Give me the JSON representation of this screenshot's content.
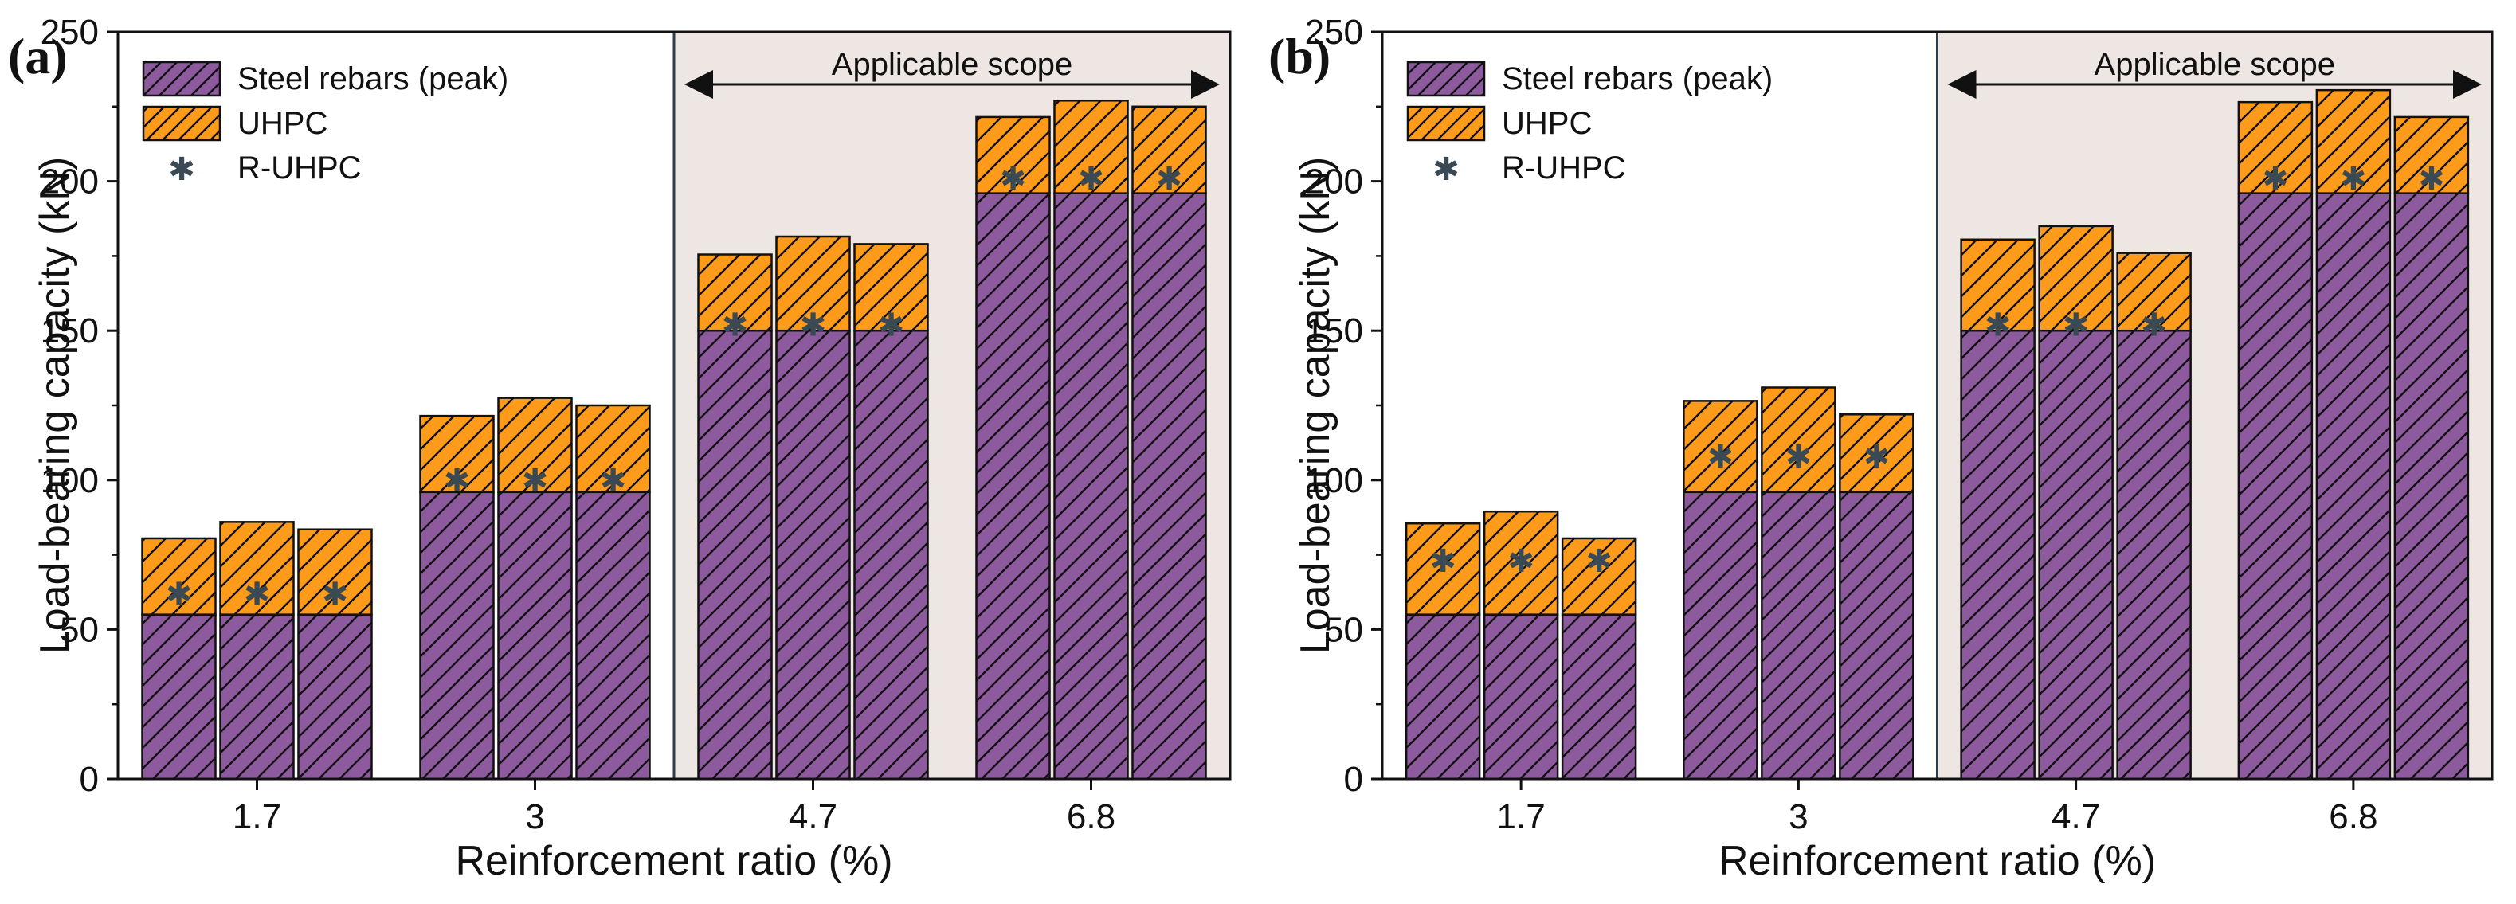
{
  "chart_data": [
    {
      "type": "bar",
      "stacked": true,
      "panel_label": "(a)",
      "categories": [
        "1.7",
        "3",
        "4.7",
        "6.8"
      ],
      "bars_per_category": 3,
      "series": [
        {
          "name": "Steel rebars (peak)",
          "color": "#8e5a9e",
          "hatch": "diagonal",
          "values": [
            [
              55,
              55,
              55
            ],
            [
              96,
              96,
              96
            ],
            [
              150,
              150,
              150
            ],
            [
              196,
              196,
              196
            ]
          ]
        },
        {
          "name": "UHPC",
          "color": "#ff9b1a",
          "hatch": "diagonal",
          "values": [
            [
              25.5,
              31,
              28.5
            ],
            [
              25.5,
              31.5,
              29
            ],
            [
              25.5,
              31.5,
              29
            ],
            [
              25.5,
              31,
              29
            ]
          ]
        }
      ],
      "totals": [
        [
          80.5,
          86,
          83.5
        ],
        [
          121.5,
          127.5,
          125
        ],
        [
          175.5,
          181.5,
          179
        ],
        [
          221.5,
          227,
          225
        ]
      ],
      "markers": {
        "name": "R-UHPC",
        "symbol": "✱",
        "color": "#3a4a55",
        "values": [
          [
            62,
            62,
            62
          ],
          [
            100,
            100,
            100
          ],
          [
            152,
            152,
            152
          ],
          [
            201,
            201,
            201
          ]
        ]
      },
      "annotation": {
        "text": "Applicable scope",
        "shaded_from_category": 2,
        "shade_color": "#ede6e3"
      },
      "xlabel": "Reinforcement ratio (%)",
      "ylabel": "Load-bearing capacity (kN)",
      "ylim": [
        0,
        250
      ],
      "yticks": [
        0,
        50,
        100,
        150,
        200,
        250
      ],
      "legend": "top-left"
    },
    {
      "type": "bar",
      "stacked": true,
      "panel_label": "(b)",
      "categories": [
        "1.7",
        "3",
        "4.7",
        "6.8"
      ],
      "bars_per_category": 3,
      "series": [
        {
          "name": "Steel rebars (peak)",
          "color": "#8e5a9e",
          "hatch": "diagonal",
          "values": [
            [
              55,
              55,
              55
            ],
            [
              96,
              96,
              96
            ],
            [
              150,
              150,
              150
            ],
            [
              196,
              196,
              196
            ]
          ]
        },
        {
          "name": "UHPC",
          "color": "#ff9b1a",
          "hatch": "diagonal",
          "values": [
            [
              30.5,
              34.5,
              25.5
            ],
            [
              30.5,
              35,
              26
            ],
            [
              30.5,
              35,
              26
            ],
            [
              30.5,
              34.5,
              25.5
            ]
          ]
        }
      ],
      "totals": [
        [
          85.5,
          89.5,
          80.5
        ],
        [
          126.5,
          131,
          122
        ],
        [
          180.5,
          185,
          176
        ],
        [
          226.5,
          230.5,
          221.5
        ]
      ],
      "markers": {
        "name": "R-UHPC",
        "symbol": "✱",
        "color": "#3a4a55",
        "values": [
          [
            73,
            73,
            73
          ],
          [
            108,
            108,
            108
          ],
          [
            152,
            152,
            152
          ],
          [
            201,
            201,
            201
          ]
        ]
      },
      "annotation": {
        "text": "Applicable scope",
        "shaded_from_category": 2,
        "shade_color": "#ede6e3"
      },
      "xlabel": "Reinforcement ratio (%)",
      "ylabel": "Load-bearing capacity (kN)",
      "ylim": [
        0,
        250
      ],
      "yticks": [
        0,
        50,
        100,
        150,
        200,
        250
      ],
      "legend": "top-left"
    }
  ]
}
